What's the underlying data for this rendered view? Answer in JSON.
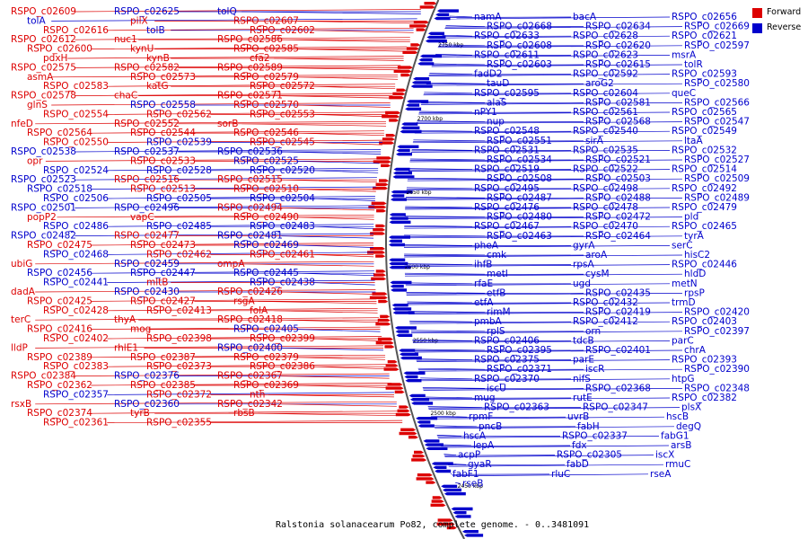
{
  "title": "Ralstonia solanacearum Po82, complete genome. - 0..3481091",
  "colors": {
    "forward": "#dd0000",
    "reverse": "#0000cc",
    "backbone": "#555555"
  },
  "legend": [
    {
      "label": "Forward",
      "color": "#dd0000"
    },
    {
      "label": "Reverse",
      "color": "#0000cc"
    }
  ],
  "ticks": [
    "2750 kbp",
    "2700 kbp",
    "2650 kbp",
    "2600 kbp",
    "2550 kbp",
    "2500 kbp",
    "2450 kbp"
  ],
  "left_labels": [
    [
      "RSPO_c02609",
      "r"
    ],
    [
      "RSPO_c02625",
      "b"
    ],
    [
      "tolQ",
      "b"
    ],
    [
      "tolA",
      "b"
    ],
    [
      "pilX",
      "r"
    ],
    [
      "RSPO_c02607",
      "r"
    ],
    [
      "RSPO_c02616",
      "r"
    ],
    [
      "tolB",
      "b"
    ],
    [
      "RSPO_c02602",
      "r"
    ],
    [
      "RSPO_c02612",
      "r"
    ],
    [
      "nuc1",
      "r"
    ],
    [
      "RSPO_c02586",
      "r"
    ],
    [
      "RSPO_c02600",
      "r"
    ],
    [
      "kynU",
      "r"
    ],
    [
      "RSPO_c02585",
      "r"
    ],
    [
      "pdxH",
      "r"
    ],
    [
      "kynB",
      "r"
    ],
    [
      "cfa2",
      "r"
    ],
    [
      "RSPO_c02575",
      "r"
    ],
    [
      "RSPO_c02582",
      "r"
    ],
    [
      "RSPO_c02589",
      "r"
    ],
    [
      "asmA",
      "r"
    ],
    [
      "RSPO_c02573",
      "r"
    ],
    [
      "RSPO_c02579",
      "r"
    ],
    [
      "RSPO_c02583",
      "r"
    ],
    [
      "katG",
      "r"
    ],
    [
      "RSPO_c02572",
      "r"
    ],
    [
      "RSPO_c02578",
      "r"
    ],
    [
      "chaC",
      "r"
    ],
    [
      "RSPO_c02571",
      "r"
    ],
    [
      "glnS",
      "r"
    ],
    [
      "RSPO_c02558",
      "b"
    ],
    [
      "RSPO_c02570",
      "r"
    ],
    [
      "RSPO_c02554",
      "r"
    ],
    [
      "RSPO_c02562",
      "r"
    ],
    [
      "RSPO_c02553",
      "r"
    ],
    [
      "nfeD",
      "r"
    ],
    [
      "RSPO_c02552",
      "r"
    ],
    [
      "sorB",
      "r"
    ],
    [
      "RSPO_c02564",
      "r"
    ],
    [
      "RSPO_c02544",
      "r"
    ],
    [
      "RSPO_c02546",
      "r"
    ],
    [
      "RSPO_c02550",
      "r"
    ],
    [
      "RSPO_c02539",
      "b"
    ],
    [
      "RSPO_c02545",
      "r"
    ],
    [
      "RSPO_c02538",
      "b"
    ],
    [
      "RSPO_c02537",
      "b"
    ],
    [
      "RSPO_c02536",
      "b"
    ],
    [
      "opr",
      "r"
    ],
    [
      "RSPO_c02533",
      "r"
    ],
    [
      "RSPO_c02525",
      "b"
    ],
    [
      "RSPO_c02524",
      "b"
    ],
    [
      "RSPO_c02528",
      "b"
    ],
    [
      "RSPO_c02520",
      "b"
    ],
    [
      "RSPO_c02523",
      "b"
    ],
    [
      "RSPO_c02516",
      "r"
    ],
    [
      "RSPO_c02515",
      "r"
    ],
    [
      "RSPO_c02518",
      "b"
    ],
    [
      "RSPO_c02513",
      "r"
    ],
    [
      "RSPO_c02510",
      "r"
    ],
    [
      "RSPO_c02506",
      "b"
    ],
    [
      "RSPO_c02505",
      "b"
    ],
    [
      "RSPO_c02504",
      "b"
    ],
    [
      "RSPO_c02501",
      "b"
    ],
    [
      "RSPO_c02496",
      "b"
    ],
    [
      "RSPO_c02494",
      "r"
    ],
    [
      "popP2",
      "r"
    ],
    [
      "vapC",
      "r"
    ],
    [
      "RSPO_c02490",
      "r"
    ],
    [
      "RSPO_c02486",
      "b"
    ],
    [
      "RSPO_c02485",
      "b"
    ],
    [
      "RSPO_c02483",
      "b"
    ],
    [
      "RSPO_c02482",
      "b"
    ],
    [
      "RSPO_c02477",
      "r"
    ],
    [
      "RSPO_c02481",
      "b"
    ],
    [
      "RSPO_c02475",
      "r"
    ],
    [
      "RSPO_c02473",
      "r"
    ],
    [
      "RSPO_c02469",
      "b"
    ],
    [
      "RSPO_c02468",
      "b"
    ],
    [
      "RSPO_c02462",
      "r"
    ],
    [
      "RSPO_c02461",
      "r"
    ],
    [
      "ubiG",
      "r"
    ],
    [
      "RSPO_c02459",
      "b"
    ],
    [
      "ompA",
      "r"
    ],
    [
      "RSPO_c02456",
      "b"
    ],
    [
      "RSPO_c02447",
      "b"
    ],
    [
      "RSPO_c02445",
      "b"
    ],
    [
      "RSPO_c02441",
      "b"
    ],
    [
      "mltB",
      "r"
    ],
    [
      "RSPO_c02438",
      "b"
    ],
    [
      "dadA",
      "r"
    ],
    [
      "RSPO_c02430",
      "b"
    ],
    [
      "RSPO_c02426",
      "r"
    ],
    [
      "RSPO_c02425",
      "r"
    ],
    [
      "RSPO_c02427",
      "r"
    ],
    [
      "rsgA",
      "r"
    ],
    [
      "RSPO_c02428",
      "r"
    ],
    [
      "RSPO_c02413",
      "r"
    ],
    [
      "folA",
      "r"
    ],
    [
      "terC",
      "r"
    ],
    [
      "thyA",
      "r"
    ],
    [
      "RSPO_c02418",
      "r"
    ],
    [
      "RSPO_c02416",
      "r"
    ],
    [
      "mog",
      "r"
    ],
    [
      "RSPO_c02405",
      "b"
    ],
    [
      "RSPO_c02402",
      "r"
    ],
    [
      "RSPO_c02398",
      "r"
    ],
    [
      "RSPO_c02399",
      "r"
    ],
    [
      "lldP",
      "r"
    ],
    [
      "rhlE1",
      "r"
    ],
    [
      "RSPO_c02400",
      "b"
    ],
    [
      "RSPO_c02389",
      "r"
    ],
    [
      "RSPO_c02387",
      "r"
    ],
    [
      "RSPO_c02379",
      "r"
    ],
    [
      "RSPO_c02383",
      "r"
    ],
    [
      "RSPO_c02373",
      "r"
    ],
    [
      "RSPO_c02386",
      "r"
    ],
    [
      "RSPO_c02384",
      "r"
    ],
    [
      "RSPO_c02376",
      "b"
    ],
    [
      "RSPO_c02367",
      "r"
    ],
    [
      "RSPO_c02362",
      "r"
    ],
    [
      "RSPO_c02385",
      "r"
    ],
    [
      "RSPO_c02369",
      "r"
    ],
    [
      "RSPO_c02357",
      "b"
    ],
    [
      "RSPO_c02372",
      "r"
    ],
    [
      "nth",
      "r"
    ],
    [
      "rsxB",
      "r"
    ],
    [
      "RSPO_c02360",
      "b"
    ],
    [
      "RSPO_c02342",
      "r"
    ],
    [
      "RSPO_c02374",
      "r"
    ],
    [
      "tyrB",
      "r"
    ],
    [
      "rbsB",
      "r"
    ],
    [
      "RSPO_c02361",
      "r"
    ],
    [
      "RSPO_c02355",
      "r"
    ]
  ],
  "right_labels": [
    "namA",
    "bacA",
    "RSPO_c02656",
    "RSPO_c02668",
    "RSPO_c02634",
    "RSPO_c02669",
    "RSPO_c02633",
    "RSPO_c02628",
    "RSPO_c02621",
    "RSPO_c02608",
    "RSPO_c02620",
    "RSPO_c02597",
    "RSPO_c02611",
    "RSPO_c02623",
    "msrA",
    "RSPO_c02603",
    "RSPO_c02615",
    "tolR",
    "fadD2",
    "RSPO_c02592",
    "RSPO_c02593",
    "tauD",
    "aroG2",
    "RSPO_c02580",
    "RSPO_c02595",
    "RSPO_c02604",
    "queC",
    "alaS",
    "RSPO_c02581",
    "RSPO_c02566",
    "nPY1",
    "RSPO_c02561",
    "RSPO_c02565",
    "nup",
    "RSPO_c02568",
    "RSPO_c02547",
    "RSPO_c02548",
    "RSPO_c02540",
    "RSPO_c02549",
    "RSPO_c02551",
    "sirA",
    "ltaA",
    "RSPO_c02531",
    "RSPO_c02535",
    "RSPO_c02532",
    "RSPO_c02534",
    "RSPO_c02521",
    "RSPO_c02527",
    "RSPO_c02519",
    "RSPO_c02522",
    "RSPO_c02514",
    "RSPO_c02508",
    "RSPO_c02503",
    "RSPO_c02509",
    "RSPO_c02495",
    "RSPO_c02498",
    "RSPO_c02492",
    "RSPO_c02487",
    "RSPO_c02488",
    "RSPO_c02489",
    "RSPO_c02476",
    "RSPO_c02478",
    "RSPO_c02479",
    "RSPO_c02480",
    "RSPO_c02472",
    "pld",
    "RSPO_c02467",
    "RSPO_c02470",
    "RSPO_c02465",
    "RSPO_c02463",
    "RSPO_c02464",
    "tyrA",
    "pheA",
    "gyrA",
    "serC",
    "cmk",
    "aroA",
    "hisC2",
    "ihfB",
    "rpsA",
    "RSPO_c02446",
    "metI",
    "cysM",
    "hldD",
    "rfaE",
    "ugd",
    "metN",
    "etfB",
    "RSPO_c02435",
    "rpsP",
    "etfA",
    "RSPO_c02432",
    "trmD",
    "rimM",
    "RSPO_c02419",
    "RSPO_c02420",
    "pmbA",
    "RSPO_c02412",
    "RSPO_c02403",
    "rplS",
    "orn",
    "RSPO_c02397",
    "RSPO_c02406",
    "tdcB",
    "parC",
    "RSPO_c02395",
    "RSPO_c02401",
    "chrA",
    "RSPO_c02375",
    "parE",
    "RSPO_c02393",
    "RSPO_c02371",
    "iscR",
    "RSPO_c02390",
    "RSPO_c02370",
    "nifS",
    "htpG",
    "iscU",
    "RSPO_c02368",
    "RSPO_c02348",
    "mug",
    "rutE",
    "RSPO_c02382",
    "RSPO_c02363",
    "RSPO_c02347",
    "plsX",
    "rpmF",
    "uvrB",
    "hscB",
    "pncB",
    "fabH",
    "degQ",
    "hscA",
    "RSPO_c02337",
    "fabG1",
    "lepA",
    "fdx",
    "arsB",
    "acpP",
    "RSPO_c02305",
    "iscX",
    "gyaR",
    "fabD",
    "rmuC",
    "fabF1",
    "rluC",
    "rseA",
    "rseB"
  ]
}
